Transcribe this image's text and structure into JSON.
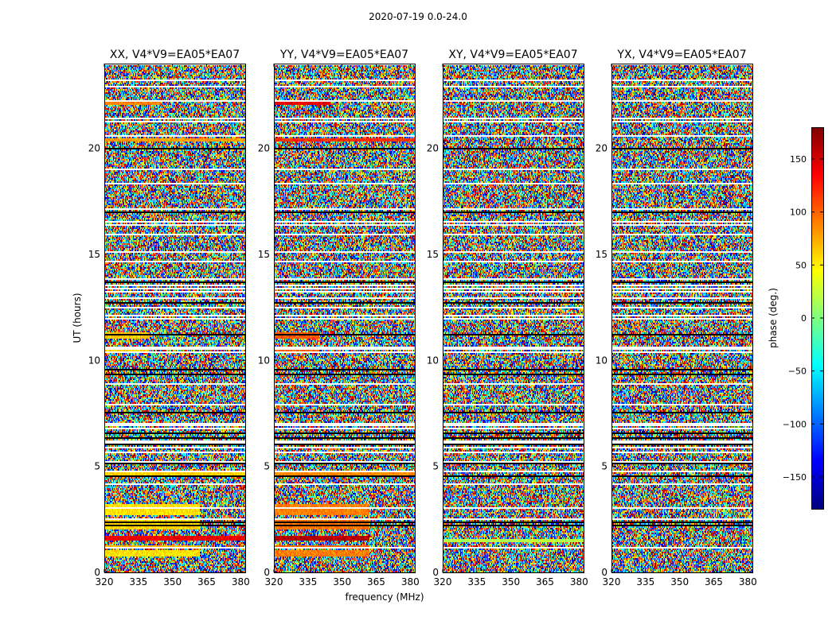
{
  "suptitle": "2020-07-19 0.0-24.0",
  "chart_data": {
    "type": "heatmap",
    "panels": [
      {
        "title": "XX, V4*V9=EA05*EA07",
        "polarization": "XX"
      },
      {
        "title": "YY, V4*V9=EA05*EA07",
        "polarization": "YY"
      },
      {
        "title": "XY, V4*V9=EA05*EA07",
        "polarization": "XY"
      },
      {
        "title": "YX, V4*V9=EA05*EA07",
        "polarization": "YX"
      }
    ],
    "xlabel": "frequency (MHz)",
    "ylabel": "UT (hours)",
    "xlim": [
      320,
      382
    ],
    "xticks": [
      320,
      335,
      350,
      365,
      380
    ],
    "xtick_labels": [
      "320",
      "335",
      "350",
      "365",
      "380"
    ],
    "ylim": [
      0,
      24
    ],
    "yticks": [
      0,
      5,
      10,
      15,
      20
    ],
    "ytick_labels": [
      "0",
      "5",
      "10",
      "15",
      "20"
    ],
    "colorbar": {
      "label": "phase (deg.)",
      "range": [
        -180,
        180
      ],
      "ticks": [
        150,
        100,
        50,
        0,
        -50,
        -100,
        -150
      ],
      "tick_labels": [
        "150",
        "100",
        "50",
        "0",
        "−50",
        "−100",
        "−150"
      ],
      "colormap": "jet"
    },
    "coherent_bands": {
      "XX": [
        {
          "ut": [
            0.75,
            1.05
          ],
          "freq_max": 362,
          "phase": 55
        },
        {
          "ut": [
            1.1,
            1.3
          ],
          "freq_max": 362,
          "phase": 70
        },
        {
          "ut": [
            1.5,
            1.75
          ],
          "freq_max": 382,
          "phase": 140
        },
        {
          "ut": [
            2.05,
            2.45
          ],
          "freq_max": 362,
          "phase": 60
        },
        {
          "ut": [
            2.7,
            3.2
          ],
          "freq_max": 362,
          "phase": 55
        },
        {
          "ut": [
            4.55,
            4.75
          ],
          "freq_max": 382,
          "phase": 60
        },
        {
          "ut": [
            10.35,
            10.6
          ],
          "freq_max": 340,
          "phase": 60
        },
        {
          "ut": [
            11.0,
            11.3
          ],
          "freq_max": 340,
          "phase": 65
        },
        {
          "ut": [
            20.3,
            20.5
          ],
          "freq_max": 382,
          "phase": 80
        },
        {
          "ut": [
            22.05,
            22.25
          ],
          "freq_max": 345,
          "phase": 90
        }
      ],
      "YY": [
        {
          "ut": [
            0.75,
            1.05
          ],
          "freq_max": 362,
          "phase": 90
        },
        {
          "ut": [
            1.1,
            1.3
          ],
          "freq_max": 362,
          "phase": 100
        },
        {
          "ut": [
            1.5,
            1.75
          ],
          "freq_max": 362,
          "phase": 160
        },
        {
          "ut": [
            2.05,
            2.45
          ],
          "freq_max": 362,
          "phase": 95
        },
        {
          "ut": [
            2.7,
            3.2
          ],
          "freq_max": 362,
          "phase": 90
        },
        {
          "ut": [
            4.55,
            4.75
          ],
          "freq_max": 382,
          "phase": 85
        },
        {
          "ut": [
            10.35,
            10.6
          ],
          "freq_max": 340,
          "phase": 100
        },
        {
          "ut": [
            11.0,
            11.3
          ],
          "freq_max": 340,
          "phase": 105
        },
        {
          "ut": [
            20.3,
            20.5
          ],
          "freq_max": 382,
          "phase": 120
        },
        {
          "ut": [
            22.05,
            22.25
          ],
          "freq_max": 345,
          "phase": 140
        }
      ],
      "XY": [
        {
          "ut": [
            1.4,
            1.6
          ],
          "freq_max": 382,
          "phase": 20
        }
      ],
      "YX": []
    }
  }
}
